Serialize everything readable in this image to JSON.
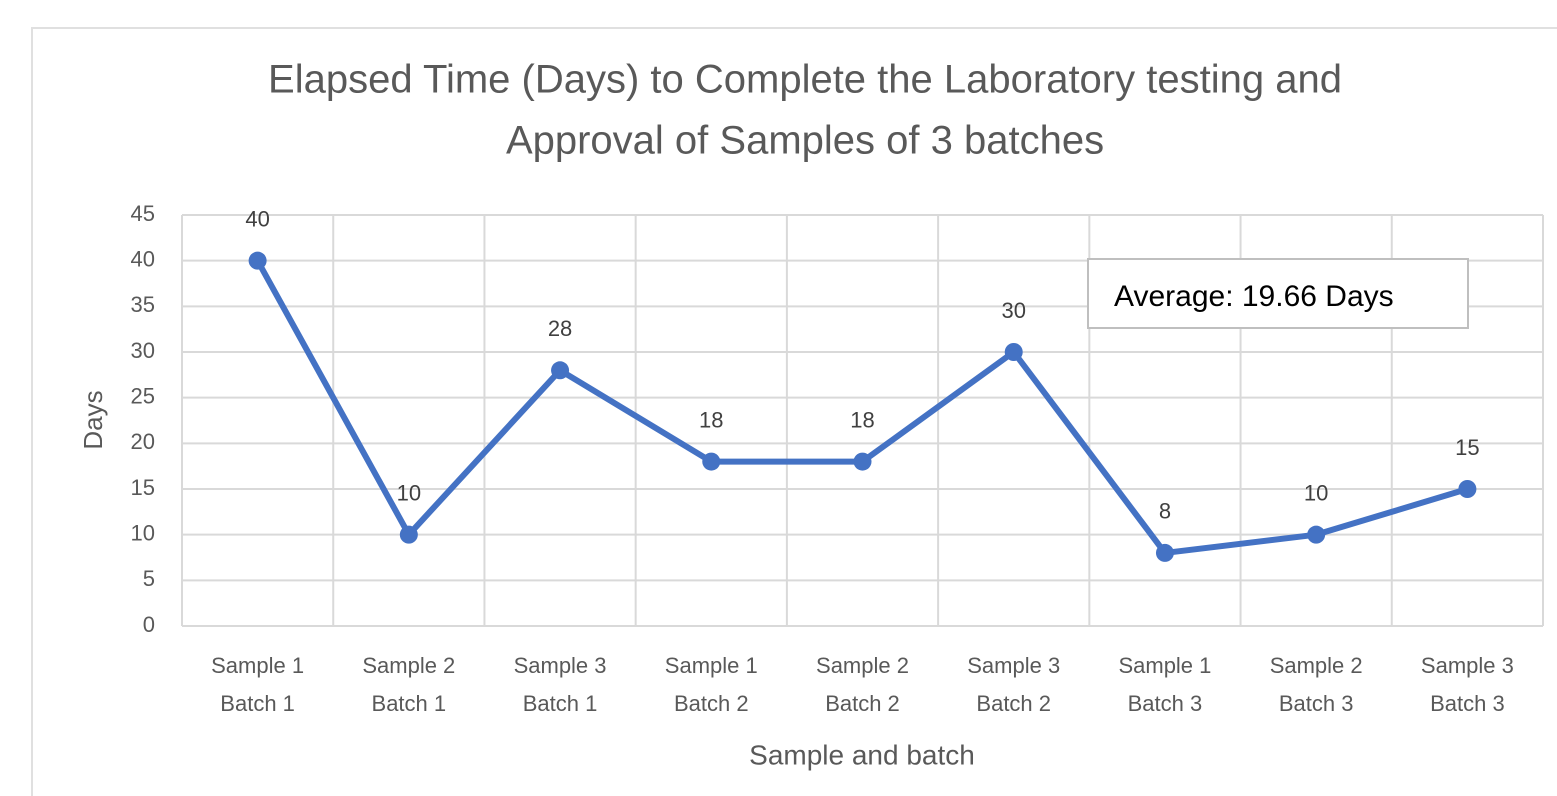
{
  "chart_data": {
    "type": "line",
    "title": [
      "Elapsed Time (Days) to Complete the Laboratory testing and",
      "Approval of Samples of 3 batches"
    ],
    "y_label": "Days",
    "x_label": "Sample and batch",
    "annotation": "Average: 19.66 Days",
    "categories": [
      [
        "Sample 1",
        "Batch 1"
      ],
      [
        "Sample 2",
        "Batch 1"
      ],
      [
        "Sample 3",
        "Batch 1"
      ],
      [
        "Sample 1",
        "Batch 2"
      ],
      [
        "Sample 2",
        "Batch 2"
      ],
      [
        "Sample 3",
        "Batch 2"
      ],
      [
        "Sample 1",
        "Batch 3"
      ],
      [
        "Sample 2",
        "Batch 3"
      ],
      [
        "Sample 3",
        "Batch 3"
      ]
    ],
    "values": [
      40,
      10,
      28,
      18,
      18,
      30,
      8,
      10,
      15
    ],
    "color": "#4472c4",
    "ylim": [
      0,
      45
    ],
    "yticks": [
      0,
      5,
      10,
      15,
      20,
      25,
      30,
      35,
      40,
      45
    ],
    "grid": true
  }
}
